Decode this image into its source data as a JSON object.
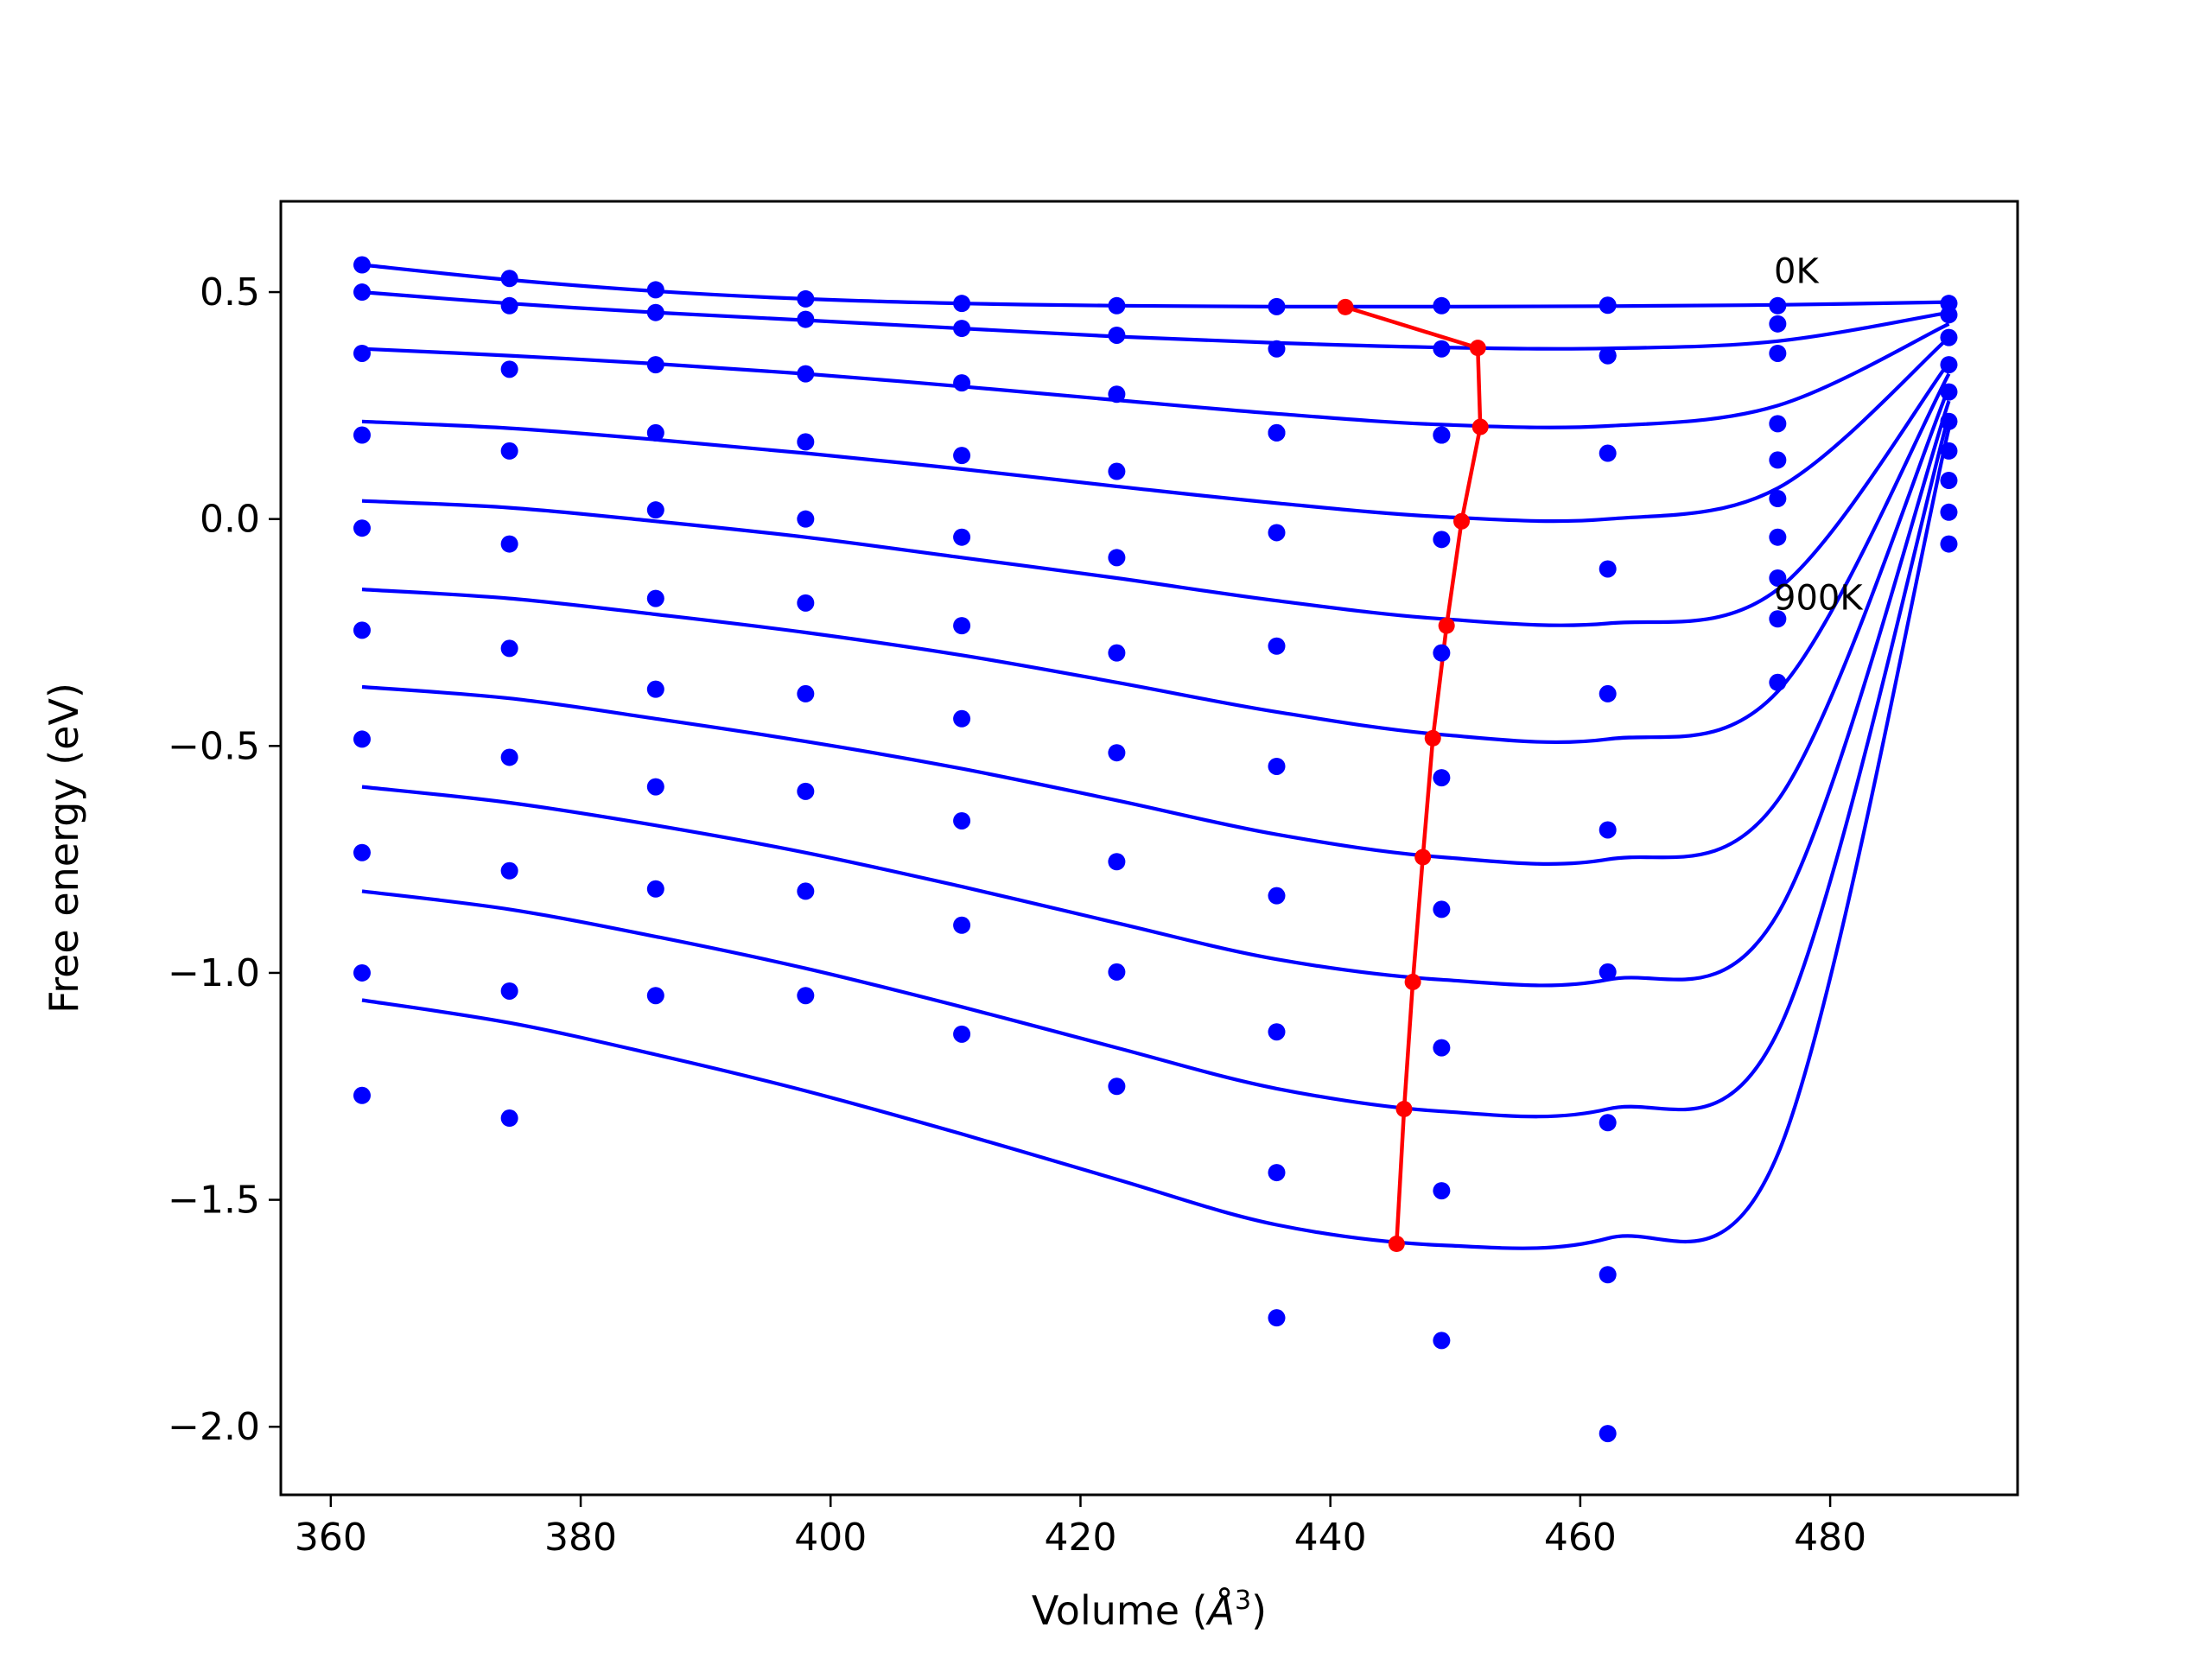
{
  "chart_data": {
    "type": "scatter",
    "title": "",
    "xlabel": "Volume (",
    "xlabel_unit": "Å",
    "xlabel_sup": "3",
    "xlabel_close": ")",
    "ylabel": "Free energy (eV)",
    "xlim": [
      356,
      495
    ],
    "ylim": [
      -2.15,
      0.7
    ],
    "xticks": [
      360,
      380,
      400,
      420,
      440,
      460,
      480
    ],
    "xtick_labels": [
      "360",
      "380",
      "400",
      "420",
      "440",
      "460",
      "480"
    ],
    "yticks": [
      0.5,
      0.0,
      -0.5,
      -1.0,
      -1.5,
      -2.0
    ],
    "ytick_labels": [
      "0.5",
      "0.0",
      "−0.5",
      "−1.0",
      "−1.5",
      "−2.0"
    ],
    "grid": false,
    "colors": {
      "points": "#0000ff",
      "fits": "#0000ff",
      "minima": "#ff0000"
    },
    "annotations": [
      {
        "text": "0K",
        "x": 475.5,
        "y": 0.52
      },
      {
        "text": "900K",
        "x": 475.5,
        "y": -0.2
      }
    ],
    "volumes": [
      362.5,
      374.3,
      386.0,
      398.0,
      410.5,
      422.9,
      435.7,
      448.9,
      462.2,
      475.8,
      489.5
    ],
    "series": [
      {
        "points": [
          0.56,
          0.53,
          0.505,
          0.485,
          0.475,
          0.47,
          0.468,
          0.47,
          0.471,
          0.47,
          0.475
        ],
        "fit": [
          0.56,
          0.527,
          0.502,
          0.485,
          0.475,
          0.47,
          0.468,
          0.468,
          0.469,
          0.472,
          0.478
        ]
      },
      {
        "points": [
          0.5,
          0.47,
          0.455,
          0.44,
          0.42,
          0.405,
          0.375,
          0.375,
          0.36,
          0.43,
          0.45
        ],
        "fit": [
          0.5,
          0.475,
          0.455,
          0.438,
          0.42,
          0.402,
          0.388,
          0.378,
          0.376,
          0.392,
          0.455
        ]
      },
      {
        "points": [
          0.365,
          0.33,
          0.34,
          0.32,
          0.3,
          0.275,
          0.19,
          0.185,
          0.36,
          0.365,
          0.4
        ],
        "fit": [
          0.375,
          0.36,
          0.342,
          0.32,
          0.292,
          0.262,
          0.232,
          0.208,
          0.205,
          0.25,
          0.43
        ]
      },
      {
        "points": [
          0.185,
          0.15,
          0.19,
          0.17,
          0.14,
          0.105,
          0.19,
          0.185,
          0.145,
          0.21,
          0.34
        ],
        "fit": [
          0.215,
          0.2,
          0.175,
          0.145,
          0.11,
          0.072,
          0.035,
          0.005,
          0.0,
          0.068,
          0.4
        ]
      },
      {
        "points": [
          -0.02,
          -0.055,
          0.02,
          0.0,
          -0.04,
          -0.085,
          -0.03,
          -0.045,
          -0.11,
          0.13,
          0.28
        ],
        "fit": [
          0.04,
          0.025,
          -0.005,
          -0.04,
          -0.085,
          -0.13,
          -0.18,
          -0.22,
          -0.23,
          -0.155,
          0.345
        ]
      },
      {
        "points": [
          -0.245,
          -0.285,
          -0.175,
          -0.185,
          -0.235,
          -0.295,
          -0.28,
          -0.295,
          -0.385,
          0.045,
          0.215
        ],
        "fit": [
          -0.155,
          -0.175,
          -0.21,
          -0.25,
          -0.3,
          -0.36,
          -0.425,
          -0.475,
          -0.485,
          -0.38,
          0.32
        ]
      },
      {
        "points": [
          -0.485,
          -0.525,
          -0.375,
          -0.385,
          -0.44,
          -0.515,
          -0.545,
          -0.57,
          -0.685,
          -0.04,
          0.15
        ],
        "fit": [
          -0.37,
          -0.395,
          -0.44,
          -0.49,
          -0.55,
          -0.62,
          -0.695,
          -0.745,
          -0.75,
          -0.62,
          0.29
        ]
      },
      {
        "points": [
          -0.735,
          -0.775,
          -0.59,
          -0.6,
          -0.665,
          -0.755,
          -0.83,
          -0.86,
          -0.998,
          -0.13,
          0.085
        ],
        "fit": [
          -0.59,
          -0.625,
          -0.675,
          -0.735,
          -0.81,
          -0.89,
          -0.97,
          -1.015,
          -1.015,
          -0.87,
          0.26
        ]
      },
      {
        "points": [
          -1.0,
          -1.04,
          -0.815,
          -0.82,
          -0.895,
          -0.998,
          -1.13,
          -1.165,
          -1.33,
          -0.22,
          0.015
        ],
        "fit": [
          -0.82,
          -0.86,
          -0.92,
          -0.99,
          -1.075,
          -1.165,
          -1.255,
          -1.305,
          -1.3,
          -1.13,
          0.23
        ]
      },
      {
        "points": [
          -1.27,
          -1.32,
          -1.05,
          -1.05,
          -1.135,
          -1.25,
          -1.44,
          -1.48,
          -1.665,
          -0.36,
          -0.055
        ],
        "fit": [
          -1.06,
          -1.11,
          -1.18,
          -1.26,
          -1.355,
          -1.455,
          -1.555,
          -1.6,
          -1.585,
          -1.4,
          0.2
        ]
      },
      {
        "points": [
          null,
          null,
          null,
          null,
          null,
          null,
          -1.76,
          -1.81,
          -2.015,
          null,
          null
        ],
        "fit": []
      }
    ],
    "minima": {
      "x": [
        441.2,
        451.8,
        452.0,
        450.5,
        449.3,
        448.2,
        447.4,
        446.6,
        445.9,
        445.3
      ],
      "y": [
        0.467,
        0.377,
        0.203,
        -0.005,
        -0.235,
        -0.483,
        -0.745,
        -1.02,
        -1.3,
        -1.597
      ]
    }
  }
}
